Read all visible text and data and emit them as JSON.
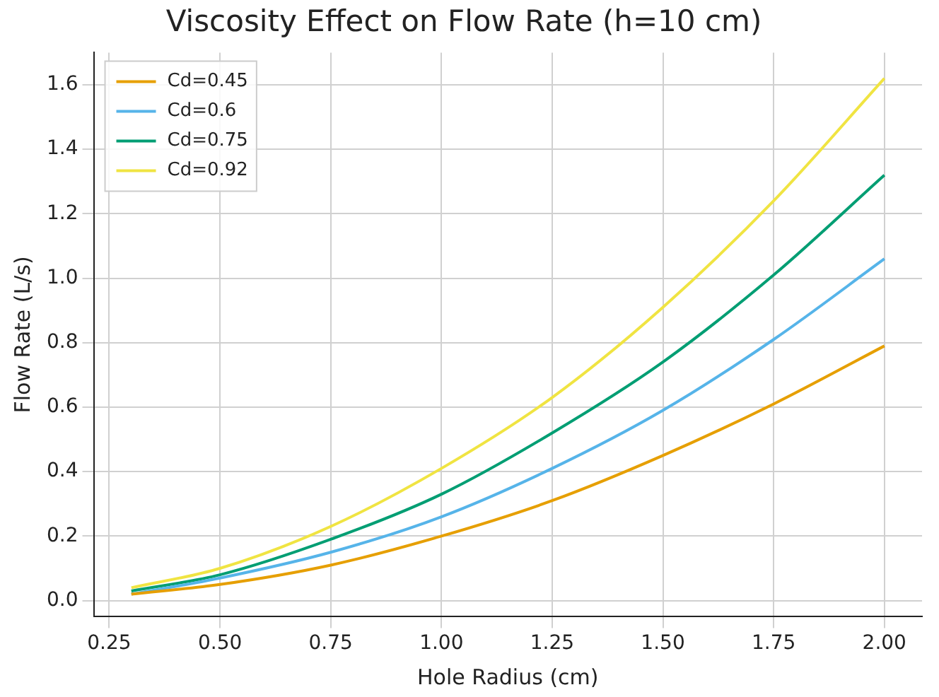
{
  "chart_data": {
    "type": "line",
    "title": "Viscosity Effect on Flow Rate (h=10 cm)",
    "xlabel": "Hole Radius (cm)",
    "ylabel": "Flow Rate (L/s)",
    "x": [
      0.3,
      0.5,
      0.75,
      1.0,
      1.25,
      1.5,
      1.75,
      2.0
    ],
    "series": [
      {
        "name": "Cd=0.45",
        "color": "#e69f00",
        "values": [
          0.02,
          0.05,
          0.11,
          0.2,
          0.31,
          0.45,
          0.61,
          0.79
        ]
      },
      {
        "name": "Cd=0.6",
        "color": "#56b4e9",
        "values": [
          0.02,
          0.07,
          0.15,
          0.26,
          0.41,
          0.59,
          0.81,
          1.06
        ]
      },
      {
        "name": "Cd=0.75",
        "color": "#009e73",
        "values": [
          0.03,
          0.08,
          0.19,
          0.33,
          0.52,
          0.74,
          1.01,
          1.32
        ]
      },
      {
        "name": "Cd=0.92",
        "color": "#f0e442",
        "values": [
          0.04,
          0.1,
          0.23,
          0.41,
          0.63,
          0.91,
          1.24,
          1.62
        ]
      }
    ],
    "xlim": [
      0.215,
      2.085
    ],
    "ylim": [
      -0.05,
      1.7
    ],
    "xticks": [
      {
        "value": 0.25,
        "label": "0.25"
      },
      {
        "value": 0.5,
        "label": "0.50"
      },
      {
        "value": 0.75,
        "label": "0.75"
      },
      {
        "value": 1.0,
        "label": "1.00"
      },
      {
        "value": 1.25,
        "label": "1.25"
      },
      {
        "value": 1.5,
        "label": "1.50"
      },
      {
        "value": 1.75,
        "label": "1.75"
      },
      {
        "value": 2.0,
        "label": "2.00"
      }
    ],
    "yticks": [
      {
        "value": 0,
        "label": "0.0"
      },
      {
        "value": 0.2,
        "label": "0.2"
      },
      {
        "value": 0.4,
        "label": "0.4"
      },
      {
        "value": 0.6,
        "label": "0.6"
      },
      {
        "value": 0.8,
        "label": "0.8"
      },
      {
        "value": 1.0,
        "label": "1.0"
      },
      {
        "value": 1.2,
        "label": "1.2"
      },
      {
        "value": 1.4,
        "label": "1.4"
      },
      {
        "value": 1.6,
        "label": "1.6"
      }
    ],
    "grid": true,
    "legend": "top left",
    "marker": "none",
    "line_style": "solid"
  }
}
